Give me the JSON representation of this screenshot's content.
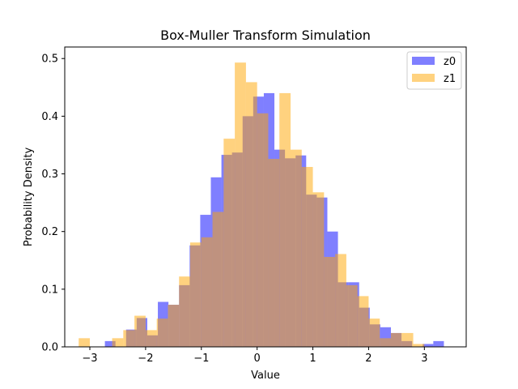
{
  "chart_data": {
    "type": "histogram",
    "title": "Box-Muller Transform Simulation",
    "xlabel": "Value",
    "ylabel": "Probability Density",
    "xlim": [
      -3.45,
      3.75
    ],
    "ylim": [
      0,
      0.52
    ],
    "xticks": [
      -3,
      -2,
      -1,
      0,
      1,
      2,
      3
    ],
    "xtick_labels": [
      "−3",
      "−2",
      "−1",
      "0",
      "1",
      "2",
      "3"
    ],
    "yticks": [
      0.0,
      0.1,
      0.2,
      0.3,
      0.4,
      0.5
    ],
    "ytick_labels": [
      "0.0",
      "0.1",
      "0.2",
      "0.3",
      "0.4",
      "0.5"
    ],
    "legend_position": "top-right",
    "series": [
      {
        "name": "z0",
        "color": "#0000ff",
        "opacity": 0.5,
        "bins": [
          [
            -2.73,
            -2.54,
            0.01
          ],
          [
            -2.54,
            -2.35,
            0.0
          ],
          [
            -2.35,
            -2.16,
            0.03
          ],
          [
            -2.16,
            -1.97,
            0.05
          ],
          [
            -1.97,
            -1.78,
            0.02
          ],
          [
            -1.78,
            -1.59,
            0.078
          ],
          [
            -1.59,
            -1.4,
            0.073
          ],
          [
            -1.4,
            -1.21,
            0.107
          ],
          [
            -1.21,
            -1.02,
            0.176
          ],
          [
            -1.02,
            -0.83,
            0.229
          ],
          [
            -0.83,
            -0.64,
            0.294
          ],
          [
            -0.64,
            -0.45,
            0.333
          ],
          [
            -0.45,
            -0.26,
            0.337
          ],
          [
            -0.26,
            -0.07,
            0.4
          ],
          [
            -0.07,
            0.12,
            0.434
          ],
          [
            0.12,
            0.31,
            0.44
          ],
          [
            0.31,
            0.5,
            0.342
          ],
          [
            0.5,
            0.69,
            0.327
          ],
          [
            0.69,
            0.88,
            0.332
          ],
          [
            0.88,
            1.07,
            0.264
          ],
          [
            1.07,
            1.26,
            0.259
          ],
          [
            1.26,
            1.45,
            0.2
          ],
          [
            1.45,
            1.64,
            0.112
          ],
          [
            1.64,
            1.83,
            0.112
          ],
          [
            1.83,
            2.02,
            0.068
          ],
          [
            2.02,
            2.21,
            0.039
          ],
          [
            2.21,
            2.4,
            0.034
          ],
          [
            2.4,
            2.59,
            0.024
          ],
          [
            2.59,
            2.78,
            0.01
          ],
          [
            2.78,
            2.97,
            0.0
          ],
          [
            2.97,
            3.16,
            0.005
          ],
          [
            3.16,
            3.35,
            0.01
          ]
        ]
      },
      {
        "name": "z1",
        "color": "#ffa500",
        "opacity": 0.5,
        "bins": [
          [
            -3.2,
            -3.0,
            0.015
          ],
          [
            -3.0,
            -2.8,
            0.0
          ],
          [
            -2.8,
            -2.6,
            0.0
          ],
          [
            -2.6,
            -2.4,
            0.015
          ],
          [
            -2.4,
            -2.2,
            0.029
          ],
          [
            -2.2,
            -2.0,
            0.054
          ],
          [
            -2.0,
            -1.8,
            0.029
          ],
          [
            -1.8,
            -1.6,
            0.049
          ],
          [
            -1.6,
            -1.4,
            0.073
          ],
          [
            -1.4,
            -1.2,
            0.122
          ],
          [
            -1.2,
            -1.0,
            0.181
          ],
          [
            -1.0,
            -0.8,
            0.19
          ],
          [
            -0.8,
            -0.6,
            0.234
          ],
          [
            -0.6,
            -0.4,
            0.361
          ],
          [
            -0.4,
            -0.2,
            0.493
          ],
          [
            -0.2,
            0.0,
            0.459
          ],
          [
            0.0,
            0.2,
            0.405
          ],
          [
            0.2,
            0.4,
            0.326
          ],
          [
            0.4,
            0.6,
            0.44
          ],
          [
            0.6,
            0.8,
            0.342
          ],
          [
            0.8,
            1.0,
            0.312
          ],
          [
            1.0,
            1.2,
            0.268
          ],
          [
            1.2,
            1.4,
            0.156
          ],
          [
            1.4,
            1.6,
            0.161
          ],
          [
            1.6,
            1.8,
            0.107
          ],
          [
            1.8,
            2.0,
            0.088
          ],
          [
            2.0,
            2.2,
            0.049
          ],
          [
            2.2,
            2.4,
            0.015
          ],
          [
            2.4,
            2.6,
            0.024
          ],
          [
            2.6,
            2.8,
            0.024
          ],
          [
            2.8,
            3.0,
            0.005
          ]
        ]
      }
    ]
  }
}
